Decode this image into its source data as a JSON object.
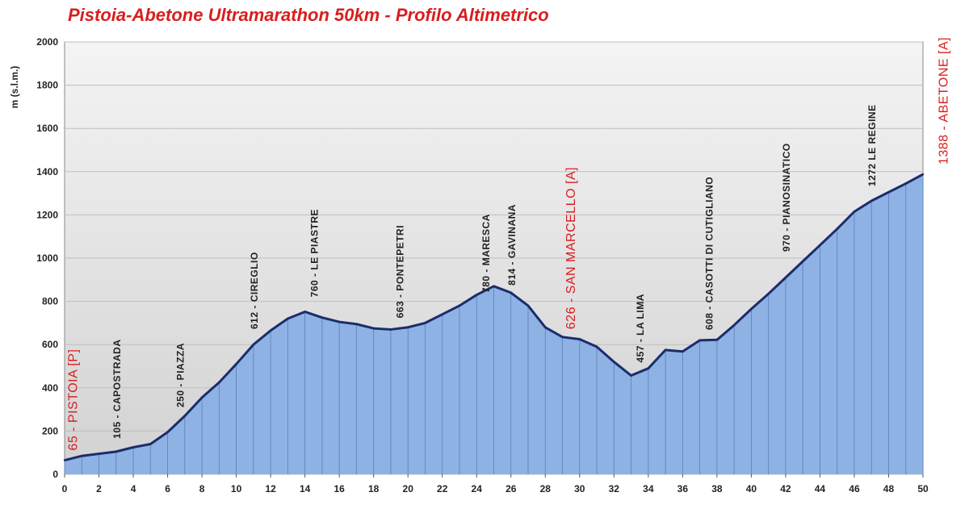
{
  "chart_data": {
    "type": "area",
    "title": "Pistoia-Abetone Ultramarathon 50km - Profilo Altimetrico",
    "ylabel": "m (s.l.m.)",
    "xlabel": "",
    "xlim": [
      0,
      50
    ],
    "ylim": [
      0,
      2000
    ],
    "x_ticks": [
      0,
      2,
      4,
      6,
      8,
      10,
      12,
      14,
      16,
      18,
      20,
      22,
      24,
      26,
      28,
      30,
      32,
      34,
      36,
      38,
      40,
      42,
      44,
      46,
      48,
      50
    ],
    "y_ticks": [
      0,
      200,
      400,
      600,
      800,
      1000,
      1200,
      1400,
      1600,
      1800,
      2000
    ],
    "grid": true,
    "colors": {
      "fill": "#8eb2e4",
      "line": "#1c2c6c",
      "highlight": "#d81e1e",
      "grid": "#bfbfbf"
    },
    "x": [
      0,
      1,
      2,
      3,
      4,
      5,
      6,
      7,
      8,
      9,
      10,
      11,
      12,
      13,
      14,
      15,
      16,
      17,
      18,
      19,
      20,
      21,
      22,
      23,
      24,
      25,
      26,
      27,
      28,
      29,
      30,
      31,
      32,
      33,
      34,
      35,
      36,
      37,
      38,
      39,
      40,
      41,
      42,
      43,
      44,
      45,
      46,
      47,
      48,
      49,
      50
    ],
    "values": [
      65,
      85,
      95,
      105,
      125,
      140,
      195,
      270,
      355,
      425,
      510,
      600,
      665,
      720,
      752,
      725,
      705,
      695,
      675,
      670,
      680,
      700,
      740,
      780,
      830,
      870,
      840,
      780,
      680,
      635,
      625,
      590,
      520,
      457,
      490,
      575,
      568,
      620,
      622,
      690,
      765,
      835,
      910,
      985,
      1060,
      1135,
      1215,
      1265,
      1305,
      1345,
      1388
    ],
    "annotations": [
      {
        "x": 0.5,
        "y": 65,
        "label": "65 - PISTOIA  [P]",
        "major": true
      },
      {
        "x": 3,
        "y": 105,
        "label": "105 - CAPOSTRADA",
        "major": false
      },
      {
        "x": 6.7,
        "y": 250,
        "label": "250 - PIAZZA",
        "major": false
      },
      {
        "x": 11,
        "y": 612,
        "label": "612 - CIREGLIO",
        "major": false
      },
      {
        "x": 14.5,
        "y": 760,
        "label": "760 - LE PIASTRE",
        "major": false
      },
      {
        "x": 19.5,
        "y": 663,
        "label": "663 - PONTEPETRI",
        "major": false
      },
      {
        "x": 24.5,
        "y": 780,
        "label": "780 - MARESCA",
        "major": false
      },
      {
        "x": 26,
        "y": 814,
        "label": "814 - GAVINANA",
        "major": false
      },
      {
        "x": 29.5,
        "y": 626,
        "label": "626 - SAN MARCELLO  [A]",
        "major": true
      },
      {
        "x": 33.5,
        "y": 457,
        "label": "457 - LA LIMA",
        "major": false
      },
      {
        "x": 37.5,
        "y": 608,
        "label": "608 - CASOTTI DI CUTIGLIANO",
        "major": false
      },
      {
        "x": 42,
        "y": 970,
        "label": "970 - PIANOSINATICO",
        "major": false
      },
      {
        "x": 47,
        "y": 1272,
        "label": "1272 LE REGINE",
        "major": false
      },
      {
        "x": 51.2,
        "y": 1388,
        "label": "1388 - ABETONE  [A]",
        "major": true
      }
    ]
  }
}
